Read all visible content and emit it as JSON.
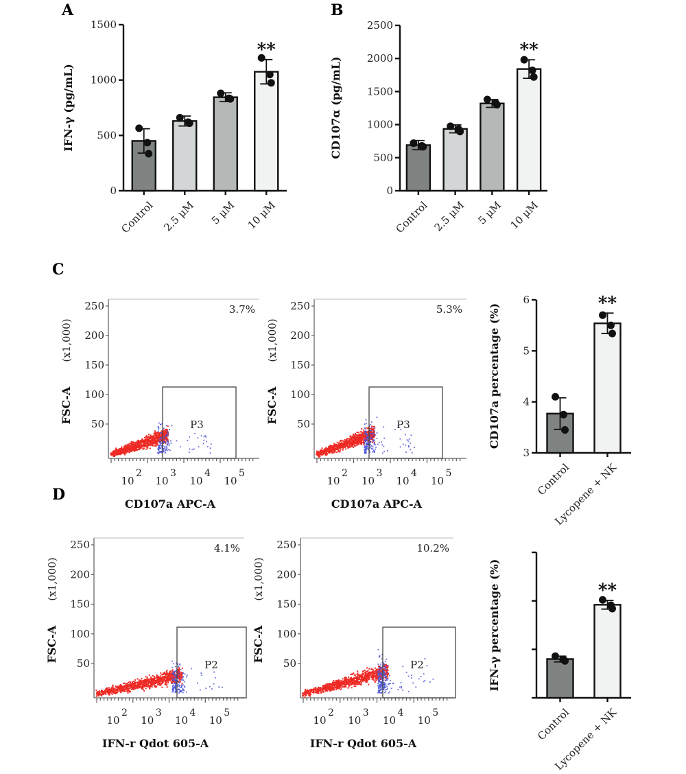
{
  "panels": {
    "a": "A",
    "b": "B",
    "c": "C",
    "d": "D"
  },
  "bar_colors": [
    "#7f8482",
    "#d2d6d6",
    "#b4b8b6",
    "#f1f2f2"
  ],
  "chart_data": [
    {
      "id": "A",
      "type": "bar",
      "categories": [
        "Control",
        "2.5 μM",
        "5 μM",
        "10 μM"
      ],
      "values": [
        450,
        630,
        845,
        1075
      ],
      "errors": [
        110,
        45,
        40,
        110
      ],
      "points": [
        [
          565,
          435,
          335
        ],
        [
          660,
          620,
          610
        ],
        [
          880,
          835,
          830
        ],
        [
          1200,
          1050,
          975
        ]
      ],
      "ylabel": "IFN-γ (pg/mL)",
      "ylim": [
        0,
        1500
      ],
      "yticks": [
        0,
        500,
        1000,
        1500
      ],
      "annotation": "**",
      "annotated_index": 3
    },
    {
      "id": "B",
      "type": "bar",
      "categories": [
        "Control",
        "2.5 μM",
        "5 μM",
        "10 μM"
      ],
      "values": [
        690,
        935,
        1320,
        1840
      ],
      "errors": [
        70,
        60,
        60,
        140
      ],
      "points": [
        [
          720,
          680,
          665
        ],
        [
          975,
          930,
          895
        ],
        [
          1380,
          1330,
          1300
        ],
        [
          1980,
          1820,
          1720
        ]
      ],
      "ylabel": "CD107α (pg/mL)",
      "ylim": [
        0,
        2500
      ],
      "yticks": [
        0,
        500,
        1000,
        1500,
        2000,
        2500
      ],
      "annotation": "**",
      "annotated_index": 3
    },
    {
      "id": "C-bar",
      "type": "bar",
      "categories": [
        "Control",
        "Lycopene + NK"
      ],
      "values": [
        3.77,
        5.54
      ],
      "errors": [
        0.31,
        0.2
      ],
      "points": [
        [
          4.1,
          3.75,
          3.45
        ],
        [
          5.7,
          5.5,
          5.34
        ]
      ],
      "ylabel": "CD107a percentage (%)",
      "ylim": [
        3,
        6
      ],
      "yticks": [
        3,
        4,
        5,
        6
      ],
      "annotation": "**",
      "annotated_index": 1
    },
    {
      "id": "D-bar",
      "type": "bar",
      "categories": [
        "Control",
        "Lycopene + NK"
      ],
      "values": [
        8.0,
        19.2
      ],
      "errors": [
        0.6,
        0.9
      ],
      "points": [
        [
          8.6,
          7.9,
          7.6
        ],
        [
          20.2,
          19.1,
          18.4
        ]
      ],
      "ylabel": "IFN-γ percentage (%)",
      "ylim": [
        0,
        30
      ],
      "yticks": [
        0,
        10,
        20,
        30
      ],
      "show_tick_labels": false,
      "annotation": "**",
      "annotated_index": 1
    }
  ],
  "facs_plots": [
    {
      "id": "C-control",
      "ylabel": "FSC-A",
      "yunit": "(x1,000)",
      "yticks": [
        "250",
        "200",
        "150",
        "100",
        "50"
      ],
      "xbase": "10",
      "xexps": [
        "2",
        "3",
        "4",
        "5"
      ],
      "xlabel": "CD107a APC-A",
      "gate": "P3",
      "percentage": "3.7%"
    },
    {
      "id": "C-lycopene",
      "ylabel": "FSC-A",
      "yunit": "(x1,000)",
      "yticks": [
        "250",
        "200",
        "150",
        "100",
        "50"
      ],
      "xbase": "10",
      "xexps": [
        "2",
        "3",
        "4",
        "5"
      ],
      "xlabel": "CD107a APC-A",
      "gate": "P3",
      "percentage": "5.3%"
    },
    {
      "id": "D-control",
      "ylabel": "FSC-A",
      "yunit": "(x1,000)",
      "yticks": [
        "250",
        "200",
        "150",
        "100",
        "50"
      ],
      "xbase": "10",
      "xexps": [
        "2",
        "3",
        "4",
        "5"
      ],
      "xlabel": "IFN-r Qdot 605-A",
      "gate": "P2",
      "percentage": "4.1%"
    },
    {
      "id": "D-lycopene",
      "ylabel": "FSC-A",
      "yunit": "(x1,000)",
      "yticks": [
        "250",
        "200",
        "150",
        "100",
        "50"
      ],
      "xbase": "10",
      "xexps": [
        "2",
        "3",
        "4",
        "5"
      ],
      "xlabel": "IFN-r Qdot 605-A",
      "gate": "P2",
      "percentage": "10.2%"
    }
  ]
}
